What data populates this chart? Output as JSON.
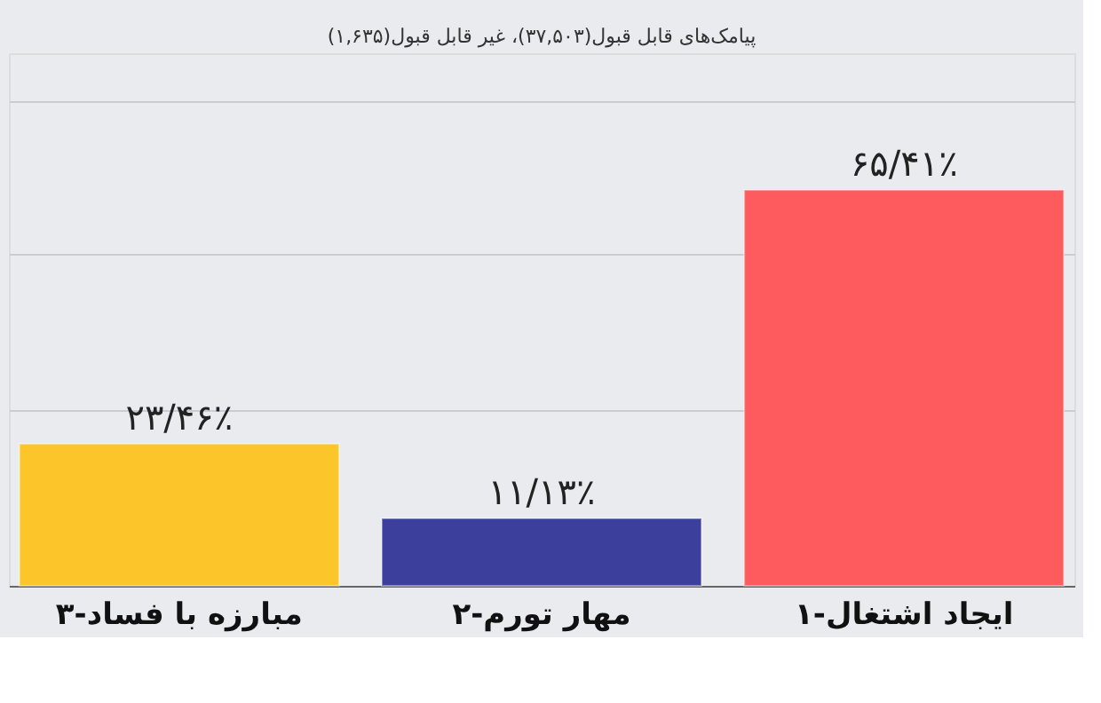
{
  "chart_data": {
    "type": "bar",
    "subtitle": "پیامک‌های قابل قبول(۳۷,۵۰۳)، غیر قابل قبول(۱,۶۳۵)",
    "categories": [
      "۳-مبارزه با فساد",
      "۲-مهار تورم",
      "۱-ایجاد اشتغال"
    ],
    "values": [
      23.46,
      11.13,
      65.41
    ],
    "colors": [
      "#fcc62a",
      "#3c3f9c",
      "#fd5b5e"
    ],
    "value_labels": [
      "۲۳/۴۶٪",
      "۱۱/۱۳٪",
      "۶۵/۴۱٪"
    ],
    "ylim": [
      0,
      88
    ],
    "yticks": [
      {
        "value": 29,
        "label": null
      },
      {
        "value": 55,
        "label": null
      },
      {
        "value": 80,
        "label": null
      }
    ],
    "grid": "y",
    "tick_labels": "x"
  }
}
